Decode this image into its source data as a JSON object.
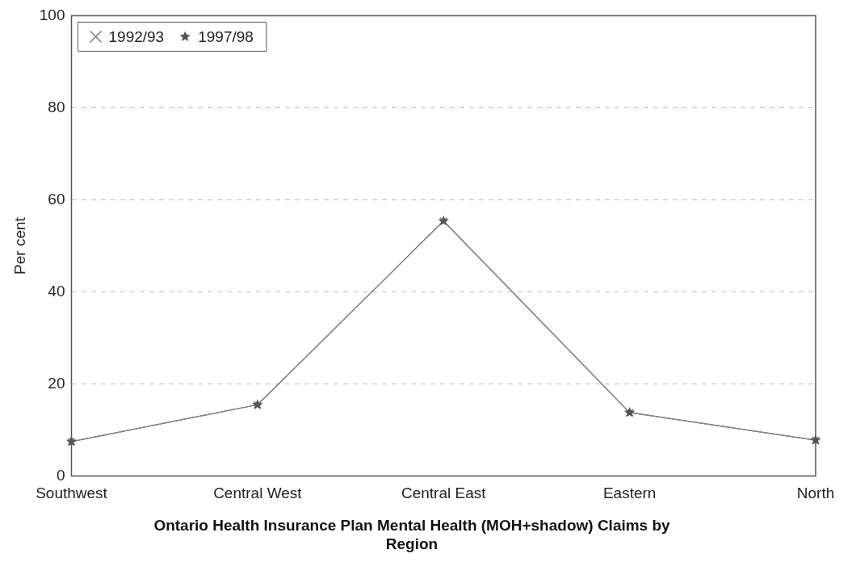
{
  "chart_data": {
    "type": "line",
    "title": "Ontario Health Insurance Plan Mental Health (MOH+shadow) Claims by Region",
    "ylabel": "Per cent",
    "categories": [
      "Southwest",
      "Central West",
      "Central East",
      "Eastern",
      "North"
    ],
    "series": [
      {
        "name": "1992/93",
        "color": "#888888",
        "marker": "cross",
        "values": [
          7.5,
          15.5,
          55.4,
          13.8,
          7.8
        ]
      },
      {
        "name": "1997/98",
        "color": "#555555",
        "marker": "star",
        "values": [
          7.5,
          15.5,
          55.4,
          13.8,
          7.8
        ]
      }
    ],
    "ylim": [
      0,
      100
    ],
    "yticks": [
      0,
      20,
      40,
      60,
      80,
      100
    ],
    "grid": "y",
    "legend": "top left",
    "line_style": "solid"
  }
}
